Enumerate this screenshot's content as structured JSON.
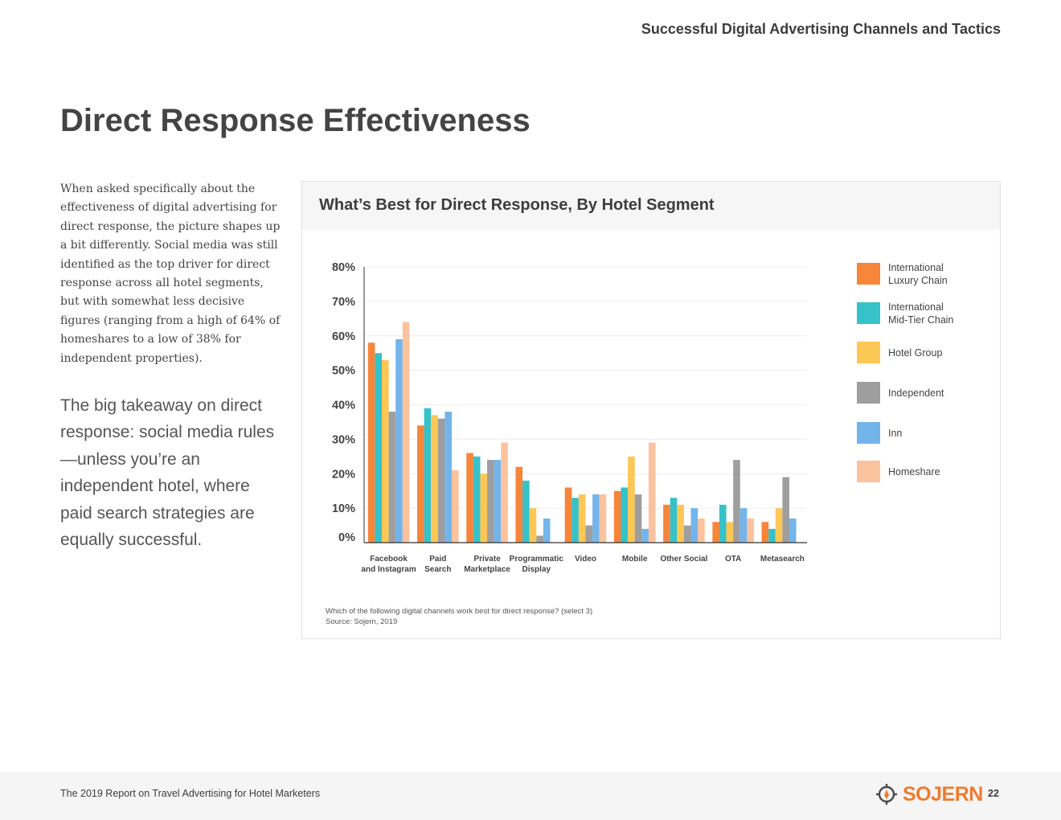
{
  "header": {
    "section_title": "Successful Digital Advertising Channels and Tactics"
  },
  "page_title": "Direct Response Effectiveness",
  "body_text": "When asked specifically about the effectiveness of digital advertising for direct response, the picture shapes up a bit differently. Social media was still identified as the top driver for direct response across all hotel segments, but with somewhat less decisive figures (ranging from a high of 64% of homeshares to a low of 38% for independent properties).",
  "takeaway": "The big takeaway on direct response: social media rules—unless you’re an independent hotel, where paid search strategies are equally successful.",
  "chart_panel": {
    "footnote_question": "Which of the following digital channels work best for direct response? (select 3)",
    "footnote_source": "Source: Sojern, 2019"
  },
  "chart_data": {
    "type": "bar",
    "title": "What’s Best for Direct Response, By Hotel Segment",
    "xlabel": "",
    "ylabel": "",
    "ylim": [
      0,
      80
    ],
    "yticks": [
      "0%",
      "10%",
      "20%",
      "30%",
      "40%",
      "50%",
      "60%",
      "70%",
      "80%"
    ],
    "grid": true,
    "legend_position": "right",
    "categories": [
      [
        "Facebook",
        "and Instagram"
      ],
      [
        "Paid",
        "Search"
      ],
      [
        "Private",
        "Marketplace"
      ],
      [
        "Programmatic",
        "Display"
      ],
      [
        "Video"
      ],
      [
        "Mobile"
      ],
      [
        "Other Social"
      ],
      [
        "OTA"
      ],
      [
        "Metasearch"
      ]
    ],
    "series": [
      {
        "name": "International Luxury Chain",
        "label_lines": [
          "International",
          "Luxury Chain"
        ],
        "color": "#f7853a",
        "values": [
          58,
          34,
          26,
          22,
          16,
          15,
          11,
          6,
          6
        ]
      },
      {
        "name": "International Mid-Tier Chain",
        "label_lines": [
          "International",
          "Mid-Tier Chain"
        ],
        "color": "#37c1c9",
        "values": [
          55,
          39,
          25,
          18,
          13,
          16,
          13,
          11,
          4
        ]
      },
      {
        "name": "Hotel Group",
        "label_lines": [
          "Hotel Group"
        ],
        "color": "#fdc756",
        "values": [
          53,
          37,
          20,
          10,
          14,
          25,
          11,
          6,
          10
        ]
      },
      {
        "name": "Independent",
        "label_lines": [
          "Independent"
        ],
        "color": "#9e9e9e",
        "values": [
          38,
          36,
          24,
          2,
          5,
          14,
          5,
          24,
          19
        ]
      },
      {
        "name": "Inn",
        "label_lines": [
          "Inn"
        ],
        "color": "#73b5eb",
        "values": [
          59,
          38,
          24,
          7,
          14,
          4,
          10,
          10,
          7
        ]
      },
      {
        "name": "Homeshare",
        "label_lines": [
          "Homeshare"
        ],
        "color": "#fbc29e",
        "values": [
          64,
          21,
          29,
          0,
          14,
          29,
          7,
          7,
          0
        ]
      }
    ]
  },
  "footer": {
    "report_title": "The 2019 Report on Travel Advertising for Hotel Marketers",
    "logo_text": "SOJERN",
    "page_number": "22",
    "brand_color": "#ef7b2e"
  }
}
